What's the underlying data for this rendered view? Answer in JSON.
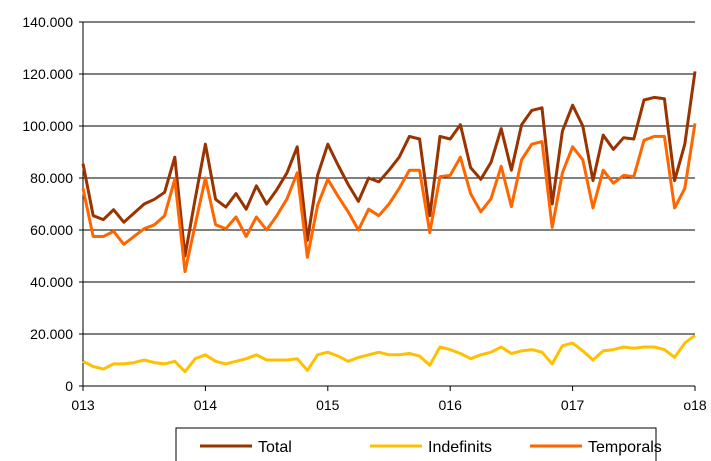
{
  "chart_data": {
    "type": "line",
    "title": "",
    "xlabel": "",
    "ylabel": "",
    "ylim": [
      0,
      140000
    ],
    "y_ticks": [
      "0",
      "20.000",
      "40.000",
      "60.000",
      "80.000",
      "100.000",
      "120.000",
      "140.000"
    ],
    "x_tick_labels": [
      "013",
      "014",
      "015",
      "016",
      "017",
      "o18"
    ],
    "x_range_months": 60,
    "grid": "horizontal",
    "legend_placement": "bottom",
    "series": [
      {
        "name": "Total",
        "color": "#993300",
        "values": [
          85500,
          65500,
          64000,
          67800,
          63000,
          66500,
          70000,
          71800,
          74500,
          88000,
          50000,
          72000,
          93000,
          71800,
          68800,
          74000,
          68000,
          77000,
          70000,
          75500,
          82000,
          92000,
          56000,
          81000,
          93000,
          85000,
          77500,
          71000,
          80000,
          78500,
          83000,
          88000,
          96000,
          95000,
          65500,
          96000,
          95000,
          100500,
          84000,
          79500,
          86000,
          99000,
          83000,
          100500,
          106000,
          107000,
          70000,
          98000,
          108000,
          100000,
          79000,
          96500,
          91000,
          95500,
          95000,
          110000,
          111000,
          110500,
          79000,
          93000,
          121000
        ]
      },
      {
        "name": "Indefinits",
        "color": "#FFC000",
        "values": [
          9500,
          7500,
          6500,
          8500,
          8500,
          9000,
          10000,
          9000,
          8500,
          9500,
          5500,
          10500,
          12000,
          9500,
          8500,
          9500,
          10500,
          12000,
          10000,
          10000,
          10000,
          10500,
          6000,
          12000,
          13000,
          11500,
          9500,
          11000,
          12000,
          13000,
          12000,
          12000,
          12500,
          11500,
          8000,
          15000,
          14000,
          12500,
          10500,
          12000,
          13000,
          15000,
          12500,
          13500,
          14000,
          13000,
          8500,
          15500,
          16500,
          13500,
          10000,
          13500,
          14000,
          15000,
          14500,
          15000,
          15000,
          14000,
          11000,
          16500,
          19500
        ]
      },
      {
        "name": "Temporals",
        "color": "#FF6600",
        "values": [
          76000,
          57500,
          57500,
          59500,
          54500,
          57500,
          60500,
          62000,
          65500,
          79500,
          44000,
          62000,
          80000,
          62000,
          60500,
          65000,
          57500,
          65000,
          60000,
          65500,
          72000,
          82000,
          49500,
          69500,
          79500,
          73000,
          67000,
          60000,
          68000,
          65500,
          70000,
          76000,
          83000,
          83000,
          59000,
          80500,
          81000,
          88000,
          74000,
          67000,
          72000,
          84500,
          69000,
          87000,
          93000,
          94000,
          61000,
          82000,
          92000,
          87000,
          68500,
          83000,
          78000,
          81000,
          80500,
          94500,
          96000,
          96000,
          68500,
          76000,
          101000
        ]
      }
    ]
  }
}
